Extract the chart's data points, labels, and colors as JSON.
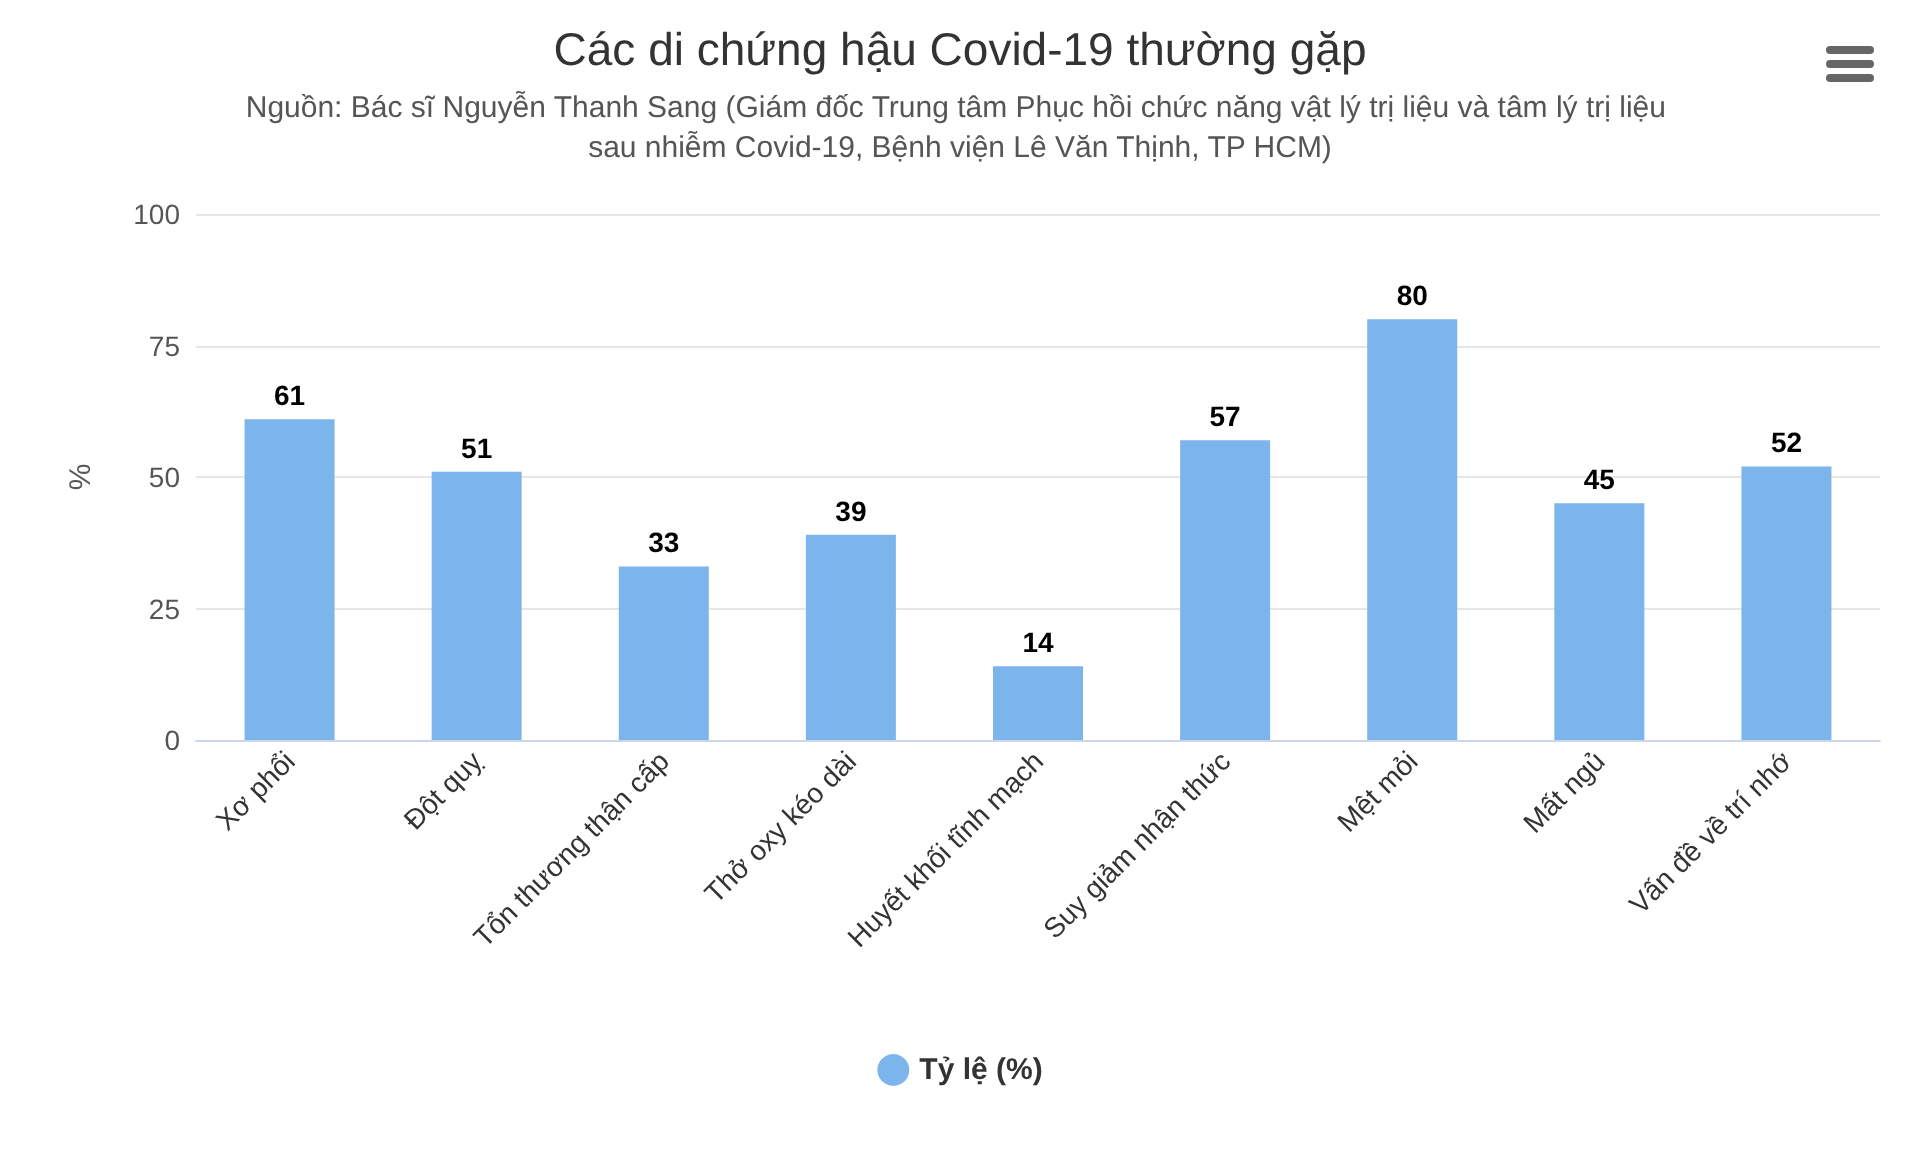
{
  "chart_data": {
    "type": "bar",
    "title": "Các di chứng hậu Covid-19 thường gặp",
    "subtitle": "Nguồn: Bác sĩ Nguyễn Thanh Sang (Giám đốc Trung tâm Phục hồi chức năng vật lý trị liệu và tâm lý trị liệu sau nhiễm Covid-19, Bệnh viện Lê Văn Thịnh, TP HCM)",
    "ylabel": "%",
    "categories": [
      "Xơ phổi",
      "Đột quỵ",
      "Tổn thương thận cấp",
      "Thở oxy kéo dài",
      "Huyết khối tĩnh mạch",
      "Suy giảm nhận thức",
      "Mệt mỏi",
      "Mất ngủ",
      "Vấn đề về trí nhớ"
    ],
    "series": [
      {
        "name": "Tỷ lệ (%)",
        "color": "#7cb5ec",
        "values": [
          61,
          51,
          33,
          39,
          14,
          57,
          80,
          45,
          52
        ]
      }
    ],
    "ylim": [
      0,
      100
    ],
    "yticks": [
      0,
      25,
      50,
      75,
      100
    ],
    "grid": "y",
    "legend": "bottom",
    "data_labels": true
  }
}
